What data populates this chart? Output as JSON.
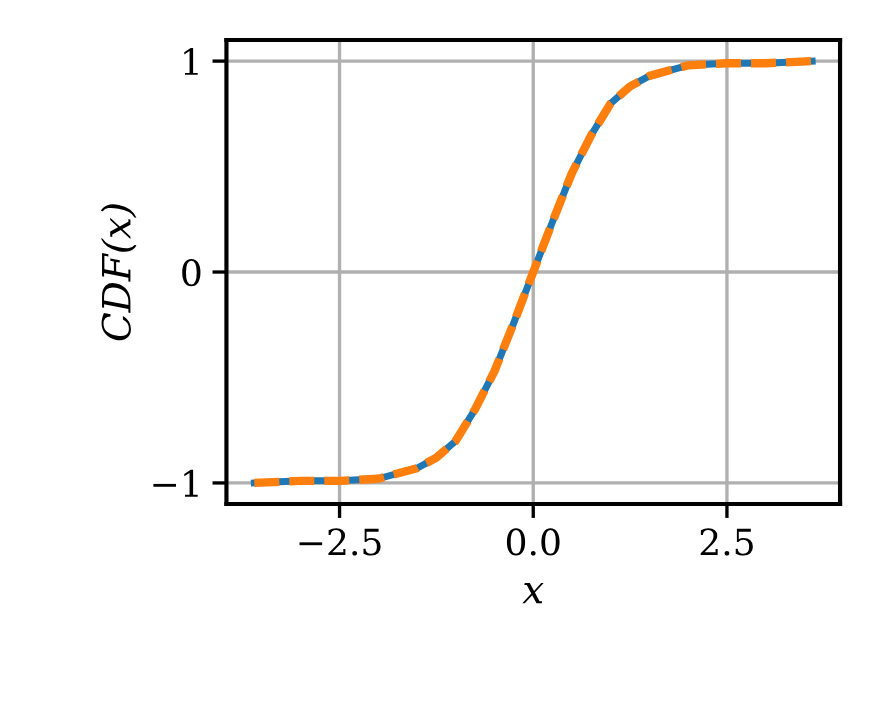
{
  "chart_data": {
    "type": "line",
    "xlabel": "x",
    "ylabel": "CDF(x)",
    "x": [
      -3.6,
      -3,
      -2.5,
      -2,
      -1.5,
      -1.25,
      -1,
      -0.75,
      -0.5,
      -0.25,
      0,
      0.25,
      0.5,
      0.75,
      1,
      1.25,
      1.5,
      2,
      2.5,
      3,
      3.6
    ],
    "series": [
      {
        "color": "#1f77b4",
        "line_style": "solid",
        "values": [
          -1,
          -0.99,
          -0.99,
          -0.98,
          -0.93,
          -0.88,
          -0.8,
          -0.65,
          -0.47,
          -0.24,
          0,
          0.24,
          0.47,
          0.65,
          0.8,
          0.88,
          0.93,
          0.98,
          0.99,
          0.99,
          1
        ]
      },
      {
        "color": "#ff7f0e",
        "line_style": "dashed",
        "values": [
          -1,
          -0.99,
          -0.99,
          -0.98,
          -0.93,
          -0.88,
          -0.8,
          -0.65,
          -0.47,
          -0.24,
          0,
          0.24,
          0.47,
          0.65,
          0.8,
          0.88,
          0.93,
          0.98,
          0.99,
          0.99,
          1
        ]
      }
    ],
    "xlim": [
      -3.96,
      3.96
    ],
    "ylim": [
      -1.1,
      1.1
    ],
    "xticks": [
      {
        "value": -2.5,
        "label": "−2.5"
      },
      {
        "value": 0,
        "label": "0.0"
      },
      {
        "value": 2.5,
        "label": "2.5"
      }
    ],
    "yticks": [
      {
        "value": -1,
        "label": "−1"
      },
      0,
      1
    ],
    "grid": true,
    "marker": "none"
  }
}
